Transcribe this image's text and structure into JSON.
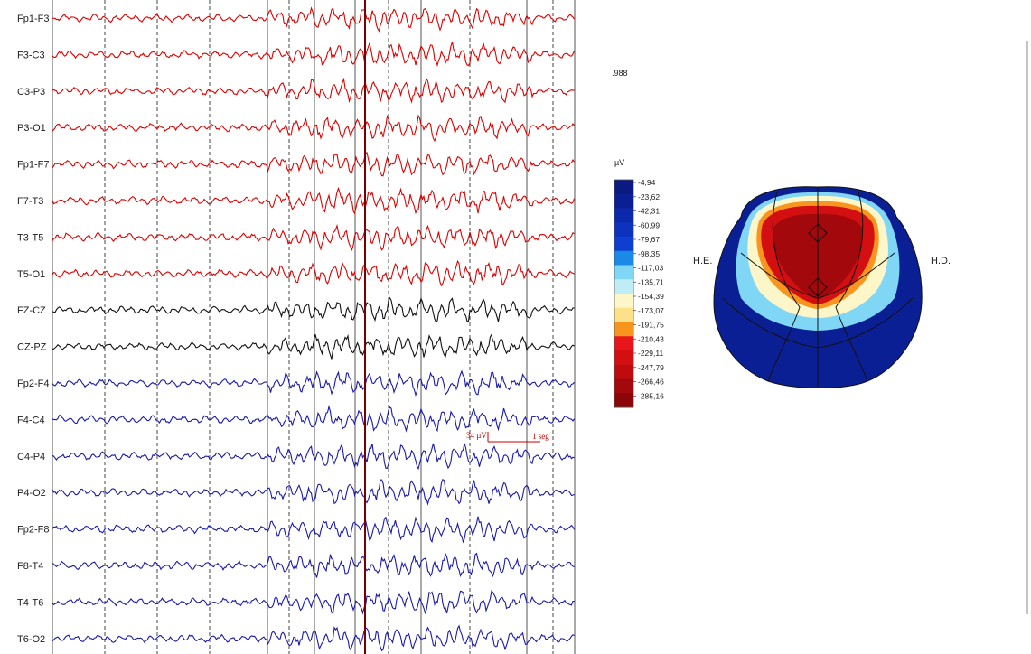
{
  "chart_data": {
    "type": "line",
    "channels": [
      {
        "name": "Fp1-F3",
        "color": "#dd0000"
      },
      {
        "name": "F3-C3",
        "color": "#dd0000"
      },
      {
        "name": "C3-P3",
        "color": "#dd0000"
      },
      {
        "name": "P3-O1",
        "color": "#dd0000"
      },
      {
        "name": "Fp1-F7",
        "color": "#dd0000"
      },
      {
        "name": "F7-T3",
        "color": "#dd0000"
      },
      {
        "name": "T3-T5",
        "color": "#dd0000"
      },
      {
        "name": "T5-O1",
        "color": "#dd0000"
      },
      {
        "name": "FZ-CZ",
        "color": "#111111"
      },
      {
        "name": "CZ-PZ",
        "color": "#111111"
      },
      {
        "name": "Fp2-F4",
        "color": "#1a1aaa"
      },
      {
        "name": "F4-C4",
        "color": "#1a1aaa"
      },
      {
        "name": "C4-P4",
        "color": "#1a1aaa"
      },
      {
        "name": "P4-O2",
        "color": "#1a1aaa"
      },
      {
        "name": "Fp2-F8",
        "color": "#1a1aaa"
      },
      {
        "name": "F8-T4",
        "color": "#1a1aaa"
      },
      {
        "name": "T4-T6",
        "color": "#1a1aaa"
      },
      {
        "name": "T6-O2",
        "color": "#1a1aaa"
      }
    ],
    "scale_bar": {
      "amplitude_label": "34 µV",
      "time_label": "1 seg"
    },
    "corner_value": ".988",
    "colorbar": {
      "unit": "µV",
      "levels": [
        "-4,94",
        "-23,62",
        "-42,31",
        "-60,99",
        "-79,67",
        "-98,35",
        "-117,03",
        "-135,71",
        "-154,39",
        "-173,07",
        "-191,75",
        "-210,43",
        "-229,11",
        "-247,79",
        "-266,46",
        "-285,16"
      ],
      "colors": [
        "#0a1a80",
        "#0b1f95",
        "#0c28aa",
        "#0d32bd",
        "#0f3fd0",
        "#1a8ae6",
        "#7fd6f5",
        "#c0ecf6",
        "#fdf6c8",
        "#fde08a",
        "#f7951e",
        "#e8161b",
        "#d40f12",
        "#bd0b0e",
        "#a3090c",
        "#8a0608"
      ]
    },
    "topomap": {
      "left_label": "H.E.",
      "right_label": "H.D."
    }
  }
}
